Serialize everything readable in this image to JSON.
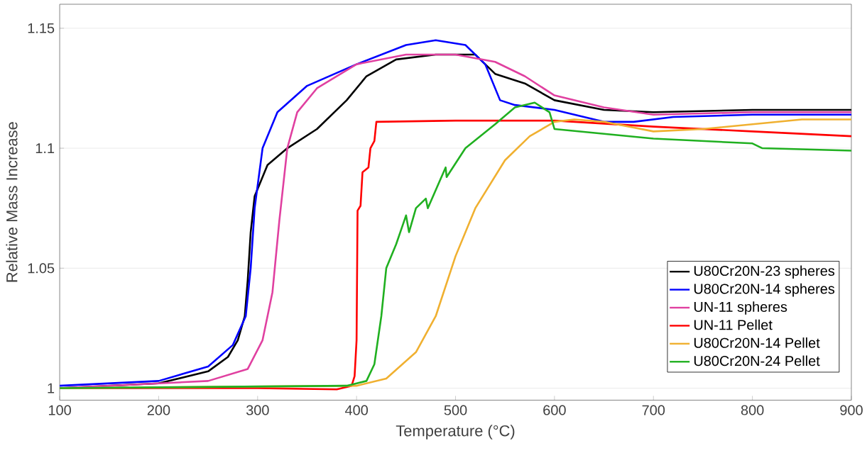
{
  "chart_data": {
    "type": "line",
    "xlabel": "Temperature (°C)",
    "ylabel": "Relative Mass Increase",
    "xlim": [
      100,
      900
    ],
    "ylim": [
      0.995,
      1.16
    ],
    "xticks": [
      100,
      200,
      300,
      400,
      500,
      600,
      700,
      800,
      900
    ],
    "yticks": [
      1,
      1.05,
      1.1,
      1.15
    ],
    "grid": "y",
    "legend": "right",
    "marker": "none",
    "line_style": "solid",
    "series": [
      {
        "name": "U80Cr20N-23 spheres",
        "color": "#000000",
        "x": [
          100,
          200,
          250,
          270,
          280,
          287,
          290,
          293,
          297,
          310,
          330,
          360,
          390,
          410,
          440,
          480,
          520,
          540,
          570,
          600,
          650,
          700,
          800,
          900
        ],
        "values": [
          1.0,
          1.002,
          1.007,
          1.013,
          1.02,
          1.03,
          1.045,
          1.065,
          1.08,
          1.093,
          1.1,
          1.108,
          1.12,
          1.13,
          1.137,
          1.139,
          1.139,
          1.131,
          1.127,
          1.12,
          1.116,
          1.115,
          1.116,
          1.116
        ]
      },
      {
        "name": "U80Cr20N-14 spheres",
        "color": "#0000ff",
        "x": [
          100,
          200,
          250,
          275,
          288,
          293,
          297,
          305,
          320,
          350,
          400,
          450,
          480,
          510,
          530,
          545,
          560,
          600,
          650,
          680,
          720,
          800,
          900
        ],
        "values": [
          1.001,
          1.003,
          1.009,
          1.018,
          1.03,
          1.05,
          1.075,
          1.1,
          1.115,
          1.126,
          1.135,
          1.143,
          1.145,
          1.143,
          1.135,
          1.12,
          1.118,
          1.116,
          1.111,
          1.111,
          1.113,
          1.114,
          1.114
        ]
      },
      {
        "name": "UN-11 spheres",
        "color": "#e040a0",
        "x": [
          100,
          250,
          290,
          305,
          315,
          322,
          330,
          340,
          360,
          400,
          450,
          500,
          540,
          570,
          600,
          650,
          700,
          800,
          900
        ],
        "values": [
          1.0,
          1.003,
          1.008,
          1.02,
          1.04,
          1.07,
          1.1,
          1.115,
          1.125,
          1.135,
          1.139,
          1.139,
          1.136,
          1.13,
          1.122,
          1.117,
          1.114,
          1.115,
          1.115
        ]
      },
      {
        "name": "UN-11 Pellet",
        "color": "#ff0000",
        "x": [
          100,
          300,
          380,
          395,
          398,
          400,
          401,
          404,
          406,
          412,
          414,
          418,
          420,
          500,
          600,
          700,
          800,
          900
        ],
        "values": [
          1.0,
          1.0,
          0.9995,
          1.001,
          1.005,
          1.02,
          1.074,
          1.076,
          1.09,
          1.092,
          1.1,
          1.103,
          1.111,
          1.1115,
          1.1115,
          1.109,
          1.107,
          1.105
        ]
      },
      {
        "name": "U80Cr20N-14 Pellet",
        "color": "#f0b030",
        "x": [
          100,
          400,
          430,
          460,
          480,
          500,
          520,
          550,
          575,
          600,
          620,
          650,
          700,
          750,
          800,
          850,
          900
        ],
        "values": [
          1.0,
          1.001,
          1.004,
          1.015,
          1.03,
          1.055,
          1.075,
          1.095,
          1.105,
          1.111,
          1.112,
          1.111,
          1.107,
          1.108,
          1.11,
          1.112,
          1.112
        ]
      },
      {
        "name": "U80Cr20N-24 Pellet",
        "color": "#20b020",
        "x": [
          100,
          390,
          410,
          418,
          425,
          430,
          440,
          450,
          453,
          460,
          470,
          472,
          490,
          491,
          510,
          540,
          560,
          580,
          595,
          600,
          700,
          800,
          810,
          900
        ],
        "values": [
          1.0,
          1.001,
          1.003,
          1.01,
          1.03,
          1.05,
          1.06,
          1.072,
          1.065,
          1.075,
          1.079,
          1.075,
          1.092,
          1.088,
          1.1,
          1.11,
          1.117,
          1.119,
          1.115,
          1.108,
          1.104,
          1.102,
          1.1,
          1.099
        ]
      }
    ]
  }
}
